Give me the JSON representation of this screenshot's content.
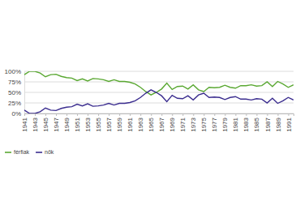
{
  "chart_data": {
    "type": "line",
    "x": [
      1941,
      1942,
      1943,
      1944,
      1945,
      1946,
      1947,
      1948,
      1949,
      1950,
      1951,
      1952,
      1953,
      1954,
      1955,
      1956,
      1957,
      1958,
      1959,
      1960,
      1961,
      1962,
      1963,
      1964,
      1965,
      1966,
      1967,
      1968,
      1969,
      1970,
      1971,
      1972,
      1973,
      1974,
      1975,
      1976,
      1977,
      1978,
      1979,
      1980,
      1981,
      1982,
      1983,
      1984,
      1985,
      1986,
      1987,
      1988,
      1989,
      1990,
      1991,
      1992
    ],
    "series": [
      {
        "name": "férfiak",
        "color": "#5aa832",
        "values": [
          92,
          100,
          100,
          96,
          87,
          92,
          93,
          88,
          85,
          84,
          78,
          82,
          77,
          83,
          82,
          80,
          76,
          80,
          76,
          76,
          74,
          70,
          62,
          52,
          44,
          50,
          58,
          72,
          57,
          64,
          65,
          58,
          68,
          56,
          52,
          62,
          61,
          62,
          67,
          62,
          60,
          66,
          66,
          68,
          65,
          66,
          75,
          64,
          76,
          70,
          62,
          68
        ]
      },
      {
        "name": "nők",
        "color": "#3b2d8f",
        "values": [
          8,
          0,
          0,
          4,
          13,
          8,
          7,
          12,
          15,
          16,
          22,
          18,
          23,
          17,
          18,
          20,
          24,
          20,
          24,
          24,
          26,
          30,
          38,
          48,
          56,
          50,
          42,
          28,
          43,
          36,
          35,
          42,
          32,
          44,
          48,
          38,
          39,
          38,
          33,
          38,
          40,
          34,
          34,
          32,
          35,
          34,
          25,
          36,
          24,
          30,
          38,
          32
        ]
      }
    ],
    "xlim": [
      1941,
      1992
    ],
    "xticks": [
      1941,
      1943,
      1945,
      1947,
      1949,
      1951,
      1953,
      1955,
      1957,
      1959,
      1961,
      1963,
      1965,
      1967,
      1969,
      1971,
      1973,
      1975,
      1977,
      1979,
      1981,
      1983,
      1985,
      1987,
      1989,
      1991
    ],
    "ylim": [
      0,
      100
    ],
    "yticks": [
      {
        "value": 0,
        "label": "0%"
      },
      {
        "value": 25,
        "label": "25%"
      },
      {
        "value": 50,
        "label": "50%"
      },
      {
        "value": 75,
        "label": "75%"
      },
      {
        "value": 100,
        "label": "100%"
      }
    ],
    "grid": true,
    "legend": "bottom-left"
  }
}
